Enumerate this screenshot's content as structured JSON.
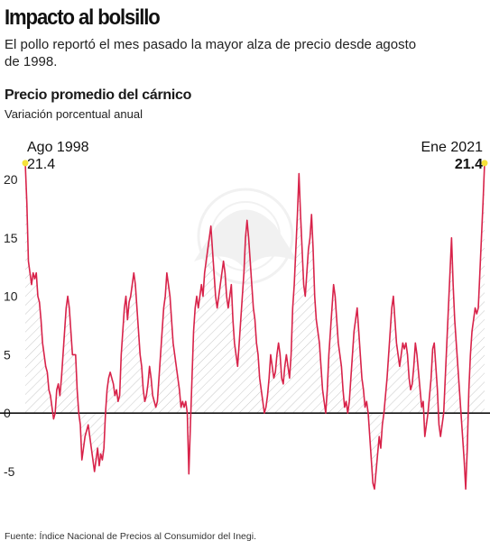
{
  "header": {
    "title": "Impacto al bolsillo",
    "subtitle": "El pollo reportó el mes pasado la mayor alza de precio desde agosto de 1998."
  },
  "annotations": {
    "start_label": "Ago 1998",
    "start_value": "21.4",
    "end_label": "Ene 2021",
    "end_value": "21.4"
  },
  "source": "Fuente: Índice Nacional de Precios al Consumidor del Inegi.",
  "colors": {
    "line": "#d8234a",
    "highlight": "#f5e23a",
    "hatch": "#c8c8c8",
    "axis": "#111111"
  },
  "chart_data": {
    "type": "area",
    "title": "Precio promedio del cárnico",
    "subtitle": "Variación porcentual anual",
    "x_range": [
      "1998-08",
      "2021-01"
    ],
    "ylim": [
      -8,
      21.5
    ],
    "yticks": [
      -5,
      0,
      5,
      10,
      15,
      20
    ],
    "ytick_labels": [
      "-5",
      "0",
      "5",
      "10",
      "15",
      "20"
    ],
    "series": [
      {
        "values": [
          21.4,
          18,
          13,
          12,
          11,
          12,
          11.5,
          12,
          10,
          9.5,
          8,
          6,
          5,
          4,
          3.5,
          2,
          1.5,
          0.5,
          -0.5,
          0,
          2,
          2.5,
          1.5,
          3,
          5,
          7,
          9,
          10,
          9,
          7,
          5,
          5,
          5,
          2,
          0,
          -1,
          -4,
          -3,
          -2,
          -1.5,
          -1,
          -2,
          -3,
          -4,
          -5,
          -4,
          -3,
          -4.5,
          -3.5,
          -4,
          -3,
          0,
          2,
          3,
          3.5,
          3,
          2.5,
          1.5,
          2,
          1,
          1.5,
          5,
          7,
          9,
          10,
          8,
          9.5,
          10,
          11,
          12,
          11,
          9,
          7,
          5,
          4,
          2,
          1,
          1.5,
          2.5,
          4,
          3,
          1.5,
          1,
          0.5,
          1,
          3,
          5,
          7,
          9,
          10,
          12,
          11,
          10,
          8,
          6,
          5,
          4,
          3,
          2,
          0.5,
          1,
          0.5,
          1,
          0,
          -5.2,
          -1,
          3,
          7,
          9,
          10,
          9,
          10,
          11,
          10,
          12,
          13,
          14,
          15,
          16,
          14,
          12,
          10,
          9,
          10,
          11,
          12,
          13,
          12,
          10,
          9,
          10,
          11,
          8,
          6,
          5,
          4,
          6,
          8,
          10,
          12,
          15,
          16.5,
          15,
          13,
          11,
          9,
          8,
          6,
          5,
          3,
          2,
          1,
          0,
          0.5,
          1.5,
          3,
          5,
          4,
          3,
          3.5,
          5,
          6,
          5,
          3,
          2.5,
          4,
          5,
          4,
          3,
          5,
          9,
          11,
          14,
          17,
          20.5,
          17,
          14,
          11,
          10,
          12,
          14,
          15,
          17,
          14,
          10,
          8,
          7,
          6,
          4,
          2,
          1,
          0,
          2,
          5,
          7,
          9,
          11,
          10,
          8,
          6,
          5,
          4,
          2,
          0.5,
          1,
          0,
          1,
          3,
          5,
          7,
          8,
          9,
          7,
          5,
          3,
          2,
          0.5,
          1,
          0,
          -2,
          -4,
          -6,
          -6.5,
          -5,
          -3.5,
          -2,
          -3,
          -1,
          0,
          1.5,
          3,
          5,
          7,
          9,
          10,
          8,
          6,
          5,
          4,
          5,
          6,
          5.5,
          6,
          5,
          3,
          2,
          2.5,
          4,
          6,
          5,
          3.5,
          2,
          0.5,
          1,
          -2,
          -1,
          0,
          1.5,
          3,
          5.5,
          6,
          4,
          2,
          -1,
          -2,
          -1,
          0,
          3,
          6,
          9,
          12,
          15,
          11,
          8,
          6,
          4,
          2,
          0,
          -2,
          -4,
          -6.5,
          -3,
          2,
          5,
          7,
          8,
          9,
          8.5,
          9,
          12,
          15,
          18,
          21.4
        ]
      }
    ],
    "grid": false
  }
}
